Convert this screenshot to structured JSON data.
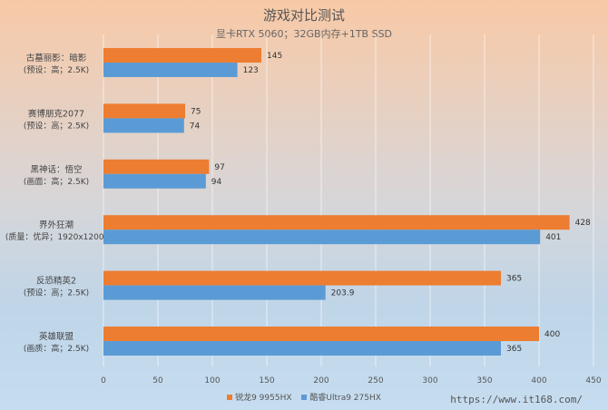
{
  "chart_data": {
    "type": "bar",
    "orientation": "horizontal",
    "title": "游戏对比测试",
    "subtitle": "显卡RTX 5060；32GB内存+1TB SSD",
    "categories": [
      [
        "古墓丽影：暗影",
        "(预设：高；2.5K)"
      ],
      [
        "赛博朋克2077",
        "(预设：高；2.5K)"
      ],
      [
        "黑神话：悟空",
        "(画面：高；2.5K)"
      ],
      [
        "界外狂潮",
        "(质量：优异；1920x1200)"
      ],
      [
        "反恐精英2",
        "(预设：高；2.5K)"
      ],
      [
        "英雄联盟",
        "(画质：高；2.5K)"
      ]
    ],
    "series": [
      {
        "name": "锐龙9 9955HX",
        "color": "#ed7d31",
        "values": [
          145,
          75,
          97,
          428,
          365,
          400
        ],
        "labels": [
          "145",
          "75",
          "97",
          "428",
          "365",
          "400"
        ]
      },
      {
        "name": "酷睿Ultra9 275HX",
        "color": "#5b9bd5",
        "values": [
          123,
          74,
          94,
          401,
          203.9,
          365
        ],
        "labels": [
          "123",
          "74",
          "94",
          "401",
          "203.9",
          "365"
        ]
      }
    ],
    "xlim": [
      0,
      450
    ],
    "xticks": [
      "0",
      "50",
      "100",
      "150",
      "200",
      "250",
      "300",
      "350",
      "400",
      "450"
    ],
    "grid": true,
    "legend": "bottom"
  },
  "watermark": "https://www.it168.com/"
}
